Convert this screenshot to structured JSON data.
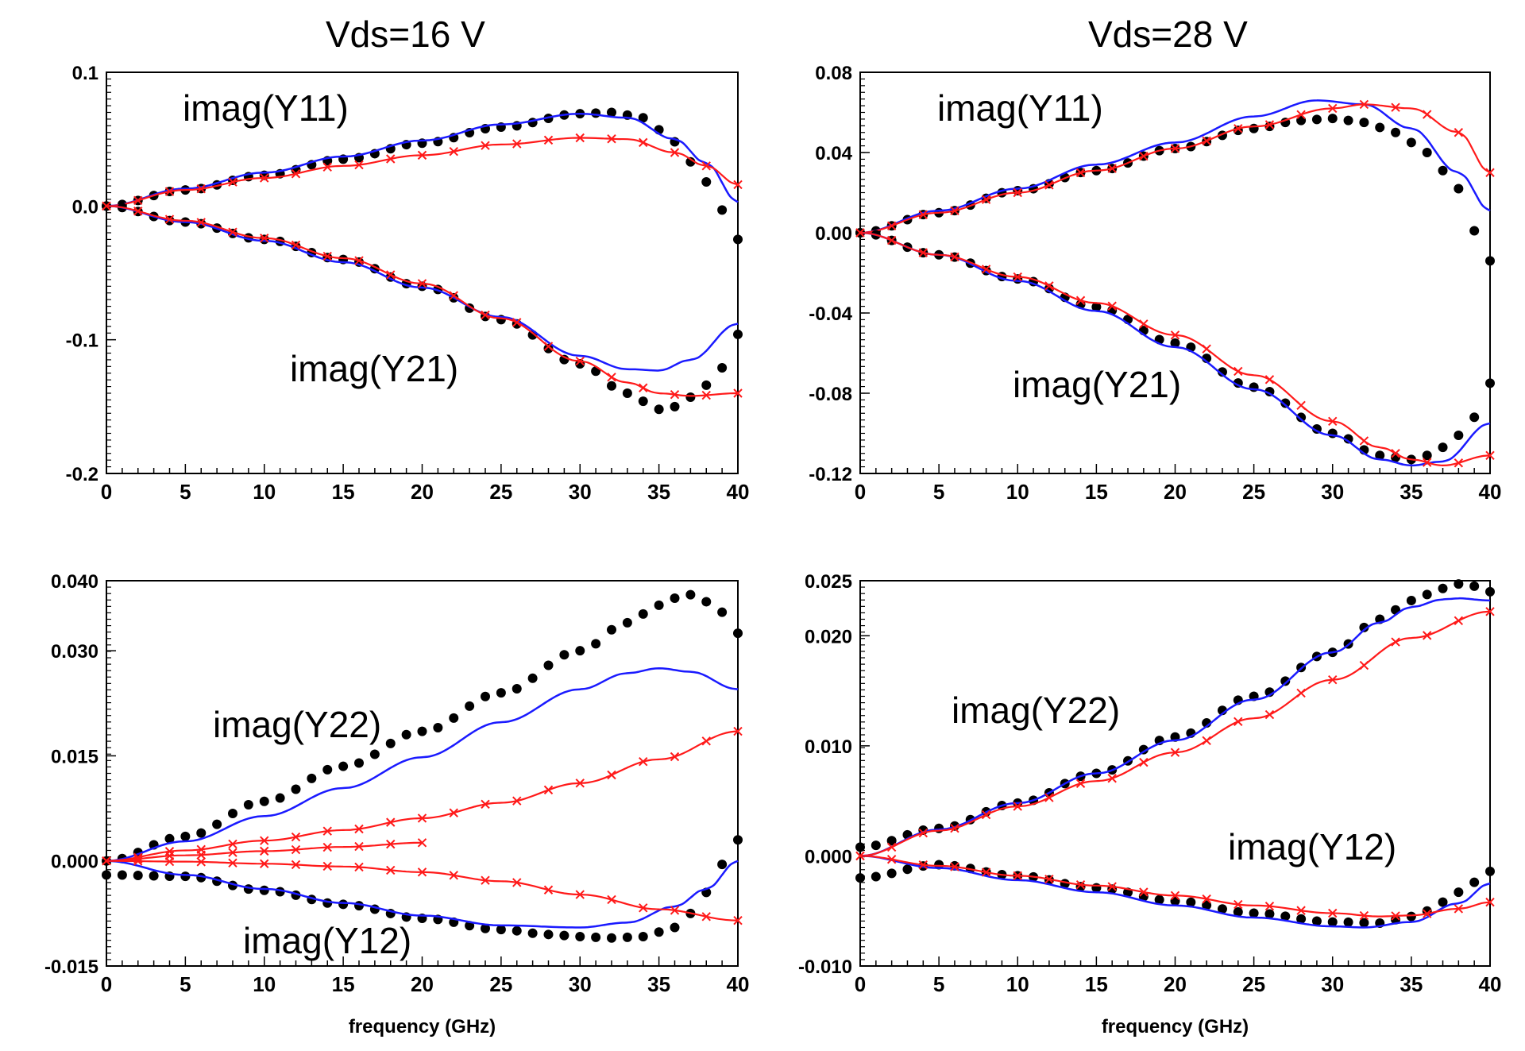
{
  "titles": [
    "Vds=16 V",
    "Vds=28 V"
  ],
  "colors": {
    "measured": "#000000",
    "model_blue": "#1a1aff",
    "model_red": "#ff1a1a",
    "axis": "#000000"
  },
  "chart_data": [
    {
      "type": "line",
      "title": "Vds=16 V",
      "xlabel": "",
      "ylabel": "",
      "xlim": [
        0,
        40
      ],
      "ylim": [
        -0.2,
        0.1
      ],
      "xticks": [
        "0",
        "5",
        "10",
        "15",
        "20",
        "25",
        "30",
        "35",
        "40"
      ],
      "yticks": [
        "-0.2",
        "-0.1",
        "0.0",
        "0.1"
      ],
      "annotations": [
        "imag(Y11)",
        "imag(Y21)"
      ],
      "series": [
        {
          "style": "dots",
          "color": "#000000",
          "x": [
            0,
            5,
            10,
            15,
            20,
            25,
            30,
            32,
            34,
            36,
            37,
            38,
            39,
            40
          ],
          "y": [
            0,
            0.012,
            0.023,
            0.035,
            0.047,
            0.059,
            0.069,
            0.07,
            0.066,
            0.048,
            0.033,
            0.018,
            -0.003,
            -0.025
          ]
        },
        {
          "style": "line",
          "color": "#1a1aff",
          "x": [
            0,
            5,
            10,
            15,
            20,
            25,
            30,
            33,
            36,
            38,
            40
          ],
          "y": [
            0,
            0.013,
            0.025,
            0.037,
            0.049,
            0.061,
            0.069,
            0.066,
            0.05,
            0.032,
            0.003
          ]
        },
        {
          "style": "cross",
          "color": "#ff1a1a",
          "x": [
            0,
            5,
            10,
            15,
            20,
            25,
            30,
            33,
            36,
            38,
            40
          ],
          "y": [
            0,
            0.012,
            0.021,
            0.03,
            0.038,
            0.046,
            0.051,
            0.05,
            0.04,
            0.03,
            0.016
          ]
        },
        {
          "style": "dots",
          "color": "#000000",
          "x": [
            0,
            5,
            10,
            15,
            20,
            25,
            30,
            33,
            35,
            36,
            37,
            38,
            39,
            40
          ],
          "y": [
            0,
            -0.012,
            -0.025,
            -0.04,
            -0.06,
            -0.085,
            -0.118,
            -0.14,
            -0.152,
            -0.15,
            -0.143,
            -0.134,
            -0.121,
            -0.096
          ]
        },
        {
          "style": "line",
          "color": "#1a1aff",
          "x": [
            0,
            5,
            10,
            15,
            20,
            25,
            30,
            33,
            35,
            37,
            40
          ],
          "y": [
            0,
            -0.012,
            -0.026,
            -0.042,
            -0.061,
            -0.083,
            -0.112,
            -0.122,
            -0.123,
            -0.115,
            -0.088
          ]
        },
        {
          "style": "cross",
          "color": "#ff1a1a",
          "x": [
            0,
            5,
            10,
            15,
            20,
            25,
            30,
            33,
            35,
            37,
            40
          ],
          "y": [
            0,
            -0.011,
            -0.024,
            -0.039,
            -0.058,
            -0.084,
            -0.116,
            -0.132,
            -0.14,
            -0.142,
            -0.14
          ]
        }
      ]
    },
    {
      "type": "line",
      "title": "Vds=28 V",
      "xlabel": "",
      "ylabel": "",
      "xlim": [
        0,
        40
      ],
      "ylim": [
        -0.12,
        0.08
      ],
      "xticks": [
        "0",
        "5",
        "10",
        "15",
        "20",
        "25",
        "30",
        "35",
        "40"
      ],
      "yticks": [
        "-0.12",
        "-0.08",
        "-0.04",
        "0.00",
        "0.04",
        "0.08"
      ],
      "annotations": [
        "imag(Y11)",
        "imag(Y21)"
      ],
      "series": [
        {
          "style": "dots",
          "color": "#000000",
          "x": [
            0,
            5,
            10,
            15,
            20,
            25,
            28,
            30,
            32,
            34,
            36,
            38,
            39,
            40
          ],
          "y": [
            0,
            0.01,
            0.021,
            0.031,
            0.042,
            0.052,
            0.056,
            0.057,
            0.055,
            0.05,
            0.04,
            0.022,
            0.001,
            -0.014
          ]
        },
        {
          "style": "line",
          "color": "#1a1aff",
          "x": [
            0,
            5,
            10,
            15,
            20,
            25,
            29,
            32,
            35,
            38,
            40
          ],
          "y": [
            0,
            0.011,
            0.022,
            0.034,
            0.045,
            0.058,
            0.066,
            0.064,
            0.052,
            0.03,
            0.011
          ]
        },
        {
          "style": "cross",
          "color": "#ff1a1a",
          "x": [
            0,
            5,
            10,
            15,
            20,
            25,
            30,
            32,
            35,
            38,
            40
          ],
          "y": [
            0,
            0.01,
            0.02,
            0.031,
            0.042,
            0.053,
            0.062,
            0.064,
            0.062,
            0.05,
            0.03
          ]
        },
        {
          "style": "dots",
          "color": "#000000",
          "x": [
            0,
            5,
            10,
            15,
            20,
            25,
            30,
            33,
            35,
            36,
            37,
            38,
            39,
            40
          ],
          "y": [
            0,
            -0.011,
            -0.023,
            -0.037,
            -0.055,
            -0.077,
            -0.1,
            -0.111,
            -0.113,
            -0.111,
            -0.107,
            -0.101,
            -0.092,
            -0.075
          ]
        },
        {
          "style": "line",
          "color": "#1a1aff",
          "x": [
            0,
            5,
            10,
            15,
            20,
            25,
            30,
            33,
            35,
            37,
            40
          ],
          "y": [
            0,
            -0.011,
            -0.024,
            -0.039,
            -0.057,
            -0.078,
            -0.101,
            -0.113,
            -0.116,
            -0.114,
            -0.095
          ]
        },
        {
          "style": "cross",
          "color": "#ff1a1a",
          "x": [
            0,
            5,
            10,
            15,
            20,
            25,
            30,
            33,
            35,
            37,
            40
          ],
          "y": [
            0,
            -0.011,
            -0.022,
            -0.035,
            -0.051,
            -0.071,
            -0.094,
            -0.107,
            -0.113,
            -0.116,
            -0.111
          ]
        }
      ]
    },
    {
      "type": "line",
      "title": "",
      "xlabel": "frequency (GHz)",
      "ylabel": "",
      "xlim": [
        0,
        40
      ],
      "ylim": [
        -0.015,
        0.04
      ],
      "xticks": [
        "0",
        "5",
        "10",
        "15",
        "20",
        "25",
        "30",
        "35",
        "40"
      ],
      "yticks": [
        "-0.015",
        "0.000",
        "0.015",
        "0.030",
        "0.040"
      ],
      "ytick_values": [
        -0.015,
        0.0,
        0.015,
        0.03,
        0.04
      ],
      "annotations": [
        "imag(Y22)",
        "imag(Y12)"
      ],
      "series": [
        {
          "style": "dots",
          "color": "#000000",
          "x": [
            0,
            5,
            10,
            15,
            20,
            25,
            30,
            33,
            35,
            36,
            37,
            38,
            39,
            40
          ],
          "y": [
            0,
            0.0035,
            0.0085,
            0.0135,
            0.0185,
            0.024,
            0.03,
            0.034,
            0.0365,
            0.0375,
            0.038,
            0.037,
            0.0355,
            0.0325
          ]
        },
        {
          "style": "line",
          "color": "#1a1aff",
          "x": [
            0,
            5,
            10,
            15,
            20,
            25,
            30,
            33,
            35,
            37,
            40
          ],
          "y": [
            0,
            0.0028,
            0.0064,
            0.0104,
            0.0148,
            0.0198,
            0.0245,
            0.0268,
            0.0275,
            0.027,
            0.0245
          ]
        },
        {
          "style": "cross",
          "color": "#ff1a1a",
          "x": [
            0,
            5,
            10,
            15,
            20,
            25,
            30,
            35,
            40
          ],
          "y": [
            0,
            0.0015,
            0.0029,
            0.0044,
            0.0061,
            0.0083,
            0.0111,
            0.0145,
            0.0185
          ]
        },
        {
          "style": "dots",
          "color": "#000000",
          "x": [
            0,
            5,
            10,
            15,
            20,
            25,
            28,
            30,
            32,
            34,
            36,
            37,
            38,
            39,
            40
          ],
          "y": [
            -0.002,
            -0.0022,
            -0.0042,
            -0.0062,
            -0.0082,
            -0.0098,
            -0.0105,
            -0.0108,
            -0.011,
            -0.0108,
            -0.0095,
            -0.0075,
            -0.0045,
            -0.0005,
            0.003
          ]
        },
        {
          "style": "line",
          "color": "#1a1aff",
          "x": [
            0,
            5,
            10,
            15,
            20,
            25,
            30,
            33,
            36,
            38,
            40
          ],
          "y": [
            0,
            -0.002,
            -0.004,
            -0.006,
            -0.0078,
            -0.0092,
            -0.0095,
            -0.0088,
            -0.0065,
            -0.004,
            0
          ]
        },
        {
          "style": "cross",
          "color": "#ff1a1a",
          "x": [
            0,
            5,
            10,
            15,
            20,
            25,
            30,
            35,
            40
          ],
          "y": [
            0,
            -0.0001,
            -0.0004,
            -0.0008,
            -0.0016,
            -0.0029,
            -0.0048,
            -0.0069,
            -0.0085
          ]
        },
        {
          "style": "cross",
          "color": "#ff1a1a",
          "x": [
            0,
            5,
            10,
            15,
            20
          ],
          "y": [
            0,
            0.0008,
            0.0014,
            0.002,
            0.0026
          ]
        }
      ]
    },
    {
      "type": "line",
      "title": "",
      "xlabel": "frequency (GHz)",
      "ylabel": "",
      "xlim": [
        0,
        40
      ],
      "ylim": [
        -0.01,
        0.025
      ],
      "xticks": [
        "0",
        "5",
        "10",
        "15",
        "20",
        "25",
        "30",
        "35",
        "40"
      ],
      "yticks": [
        "-0.010",
        "0.000",
        "0.010",
        "0.020",
        "0.025"
      ],
      "ytick_values": [
        -0.01,
        0.0,
        0.01,
        0.02,
        0.025
      ],
      "annotations": [
        "imag(Y22)",
        "imag(Y12)"
      ],
      "series": [
        {
          "style": "dots",
          "color": "#000000",
          "x": [
            0,
            5,
            10,
            15,
            20,
            25,
            30,
            33,
            35,
            37,
            38,
            39,
            40
          ],
          "y": [
            0.0008,
            0.0025,
            0.0048,
            0.0075,
            0.0108,
            0.0145,
            0.0185,
            0.0215,
            0.0232,
            0.0243,
            0.0247,
            0.0245,
            0.024
          ]
        },
        {
          "style": "line",
          "color": "#1a1aff",
          "x": [
            0,
            5,
            10,
            15,
            20,
            25,
            30,
            33,
            35,
            37,
            38,
            40
          ],
          "y": [
            0,
            0.0024,
            0.0048,
            0.0075,
            0.0105,
            0.0142,
            0.0185,
            0.0212,
            0.0226,
            0.0233,
            0.0234,
            0.0232
          ]
        },
        {
          "style": "cross",
          "color": "#ff1a1a",
          "x": [
            0,
            5,
            10,
            15,
            20,
            25,
            30,
            35,
            40
          ],
          "y": [
            0,
            0.0023,
            0.0045,
            0.0068,
            0.0094,
            0.0125,
            0.016,
            0.0198,
            0.0222
          ]
        },
        {
          "style": "dots",
          "color": "#000000",
          "x": [
            0,
            5,
            10,
            15,
            20,
            25,
            30,
            33,
            35,
            36,
            37,
            38,
            39,
            40
          ],
          "y": [
            -0.002,
            -0.0008,
            -0.0018,
            -0.0029,
            -0.0041,
            -0.0052,
            -0.006,
            -0.0061,
            -0.0055,
            -0.005,
            -0.0042,
            -0.0033,
            -0.0024,
            -0.0014
          ]
        },
        {
          "style": "line",
          "color": "#1a1aff",
          "x": [
            0,
            5,
            10,
            15,
            20,
            25,
            30,
            32,
            35,
            38,
            40
          ],
          "y": [
            0,
            -0.0011,
            -0.0022,
            -0.0033,
            -0.0045,
            -0.0056,
            -0.0064,
            -0.0065,
            -0.006,
            -0.0043,
            -0.0025
          ]
        },
        {
          "style": "cross",
          "color": "#ff1a1a",
          "x": [
            0,
            5,
            10,
            15,
            20,
            25,
            30,
            33,
            35,
            38,
            40
          ],
          "y": [
            0,
            -0.0009,
            -0.0018,
            -0.0027,
            -0.0036,
            -0.0045,
            -0.0052,
            -0.0055,
            -0.0054,
            -0.0048,
            -0.0042
          ]
        }
      ]
    }
  ]
}
